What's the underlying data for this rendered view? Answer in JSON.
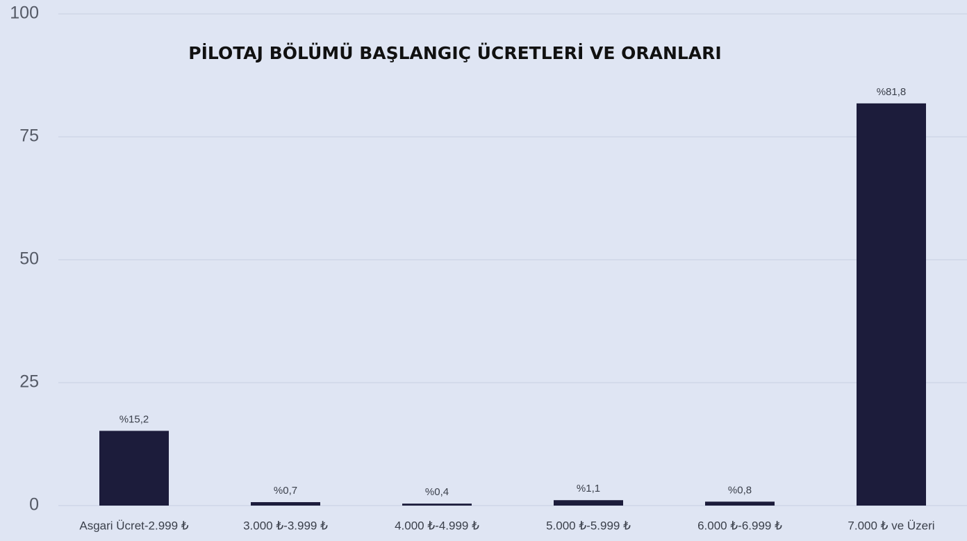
{
  "chart_data": {
    "type": "bar",
    "title": "PİLOTAJ BÖLÜMÜ BAŞLANGIÇ ÜCRETLERİ VE ORANLARI",
    "categories": [
      "Asgari Ücret-2.999 ₺",
      "3.000 ₺-3.999 ₺",
      "4.000 ₺-4.999 ₺",
      "5.000 ₺-5.999 ₺",
      "6.000 ₺-6.999 ₺",
      "7.000 ₺ ve Üzeri"
    ],
    "values": [
      15.2,
      0.7,
      0.4,
      1.1,
      0.8,
      81.8
    ],
    "value_labels": [
      "%15,2",
      "%0,7",
      "%0,4",
      "%1,1",
      "%0,8",
      "%81,8"
    ],
    "color": "#1c1c3b",
    "ylim": [
      0,
      100
    ],
    "yticks": [
      0,
      25,
      50,
      75,
      100
    ],
    "grid": true
  }
}
